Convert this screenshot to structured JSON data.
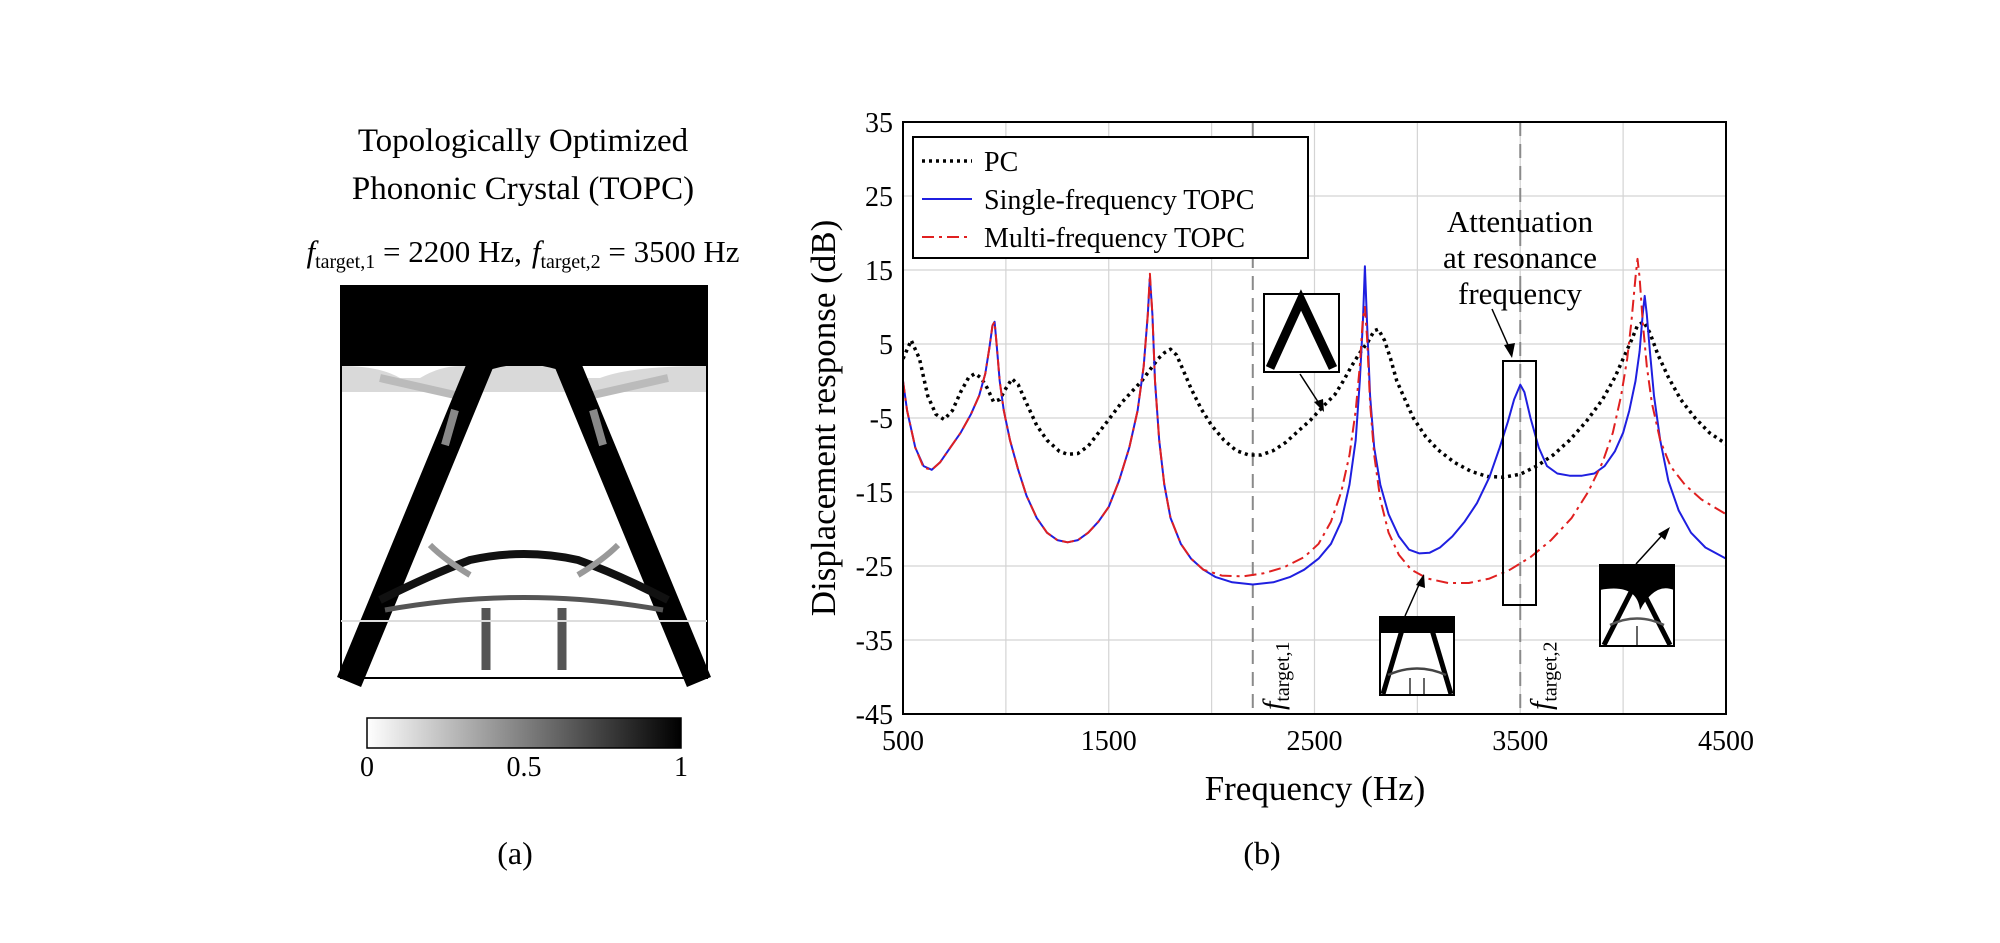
{
  "panel_a": {
    "title_line1": "Topologically Optimized",
    "title_line2": "Phononic Crystal (TOPC)",
    "f1_symbol": "f",
    "f1_sub": "target,1",
    "f1_value": " = 2200 Hz,",
    "f2_symbol": "f",
    "f2_sub": "target,2",
    "f2_value": " = 3500 Hz",
    "colorbar": {
      "ticks": [
        "0",
        "0.5",
        "1"
      ],
      "range": [
        0,
        1
      ],
      "colors": [
        "#ffffff",
        "#000000"
      ]
    },
    "caption": "(a)"
  },
  "panel_b": {
    "caption": "(b)",
    "annotation_lines": [
      "Attenuation",
      "at resonance",
      "frequency"
    ],
    "vline_labels": [
      {
        "symbol": "f",
        "sub": "target,1",
        "x": 2200
      },
      {
        "symbol": "f",
        "sub": "target,2",
        "x": 3500
      }
    ]
  },
  "chart_data": {
    "type": "line",
    "xlabel": "Frequency (Hz)",
    "ylabel": "Displacement response (dB)",
    "xlim": [
      500,
      4500
    ],
    "ylim": [
      -45,
      35
    ],
    "xticks": [
      500,
      1500,
      2500,
      3500,
      4500
    ],
    "yticks": [
      -45,
      -35,
      -25,
      -15,
      -5,
      5,
      15,
      25,
      35
    ],
    "grid": true,
    "legend_position": "top-left",
    "series": [
      {
        "name": "PC",
        "color": "#000000",
        "style": "dotted",
        "points": [
          [
            500,
            3
          ],
          [
            540,
            5.5
          ],
          [
            580,
            3
          ],
          [
            620,
            -2
          ],
          [
            660,
            -4.5
          ],
          [
            700,
            -5.2
          ],
          [
            740,
            -4
          ],
          [
            780,
            -1.5
          ],
          [
            820,
            0.5
          ],
          [
            850,
            1
          ],
          [
            880,
            0.4
          ],
          [
            910,
            -1
          ],
          [
            940,
            -2.8
          ],
          [
            970,
            -2.5
          ],
          [
            1000,
            -1
          ],
          [
            1030,
            0.3
          ],
          [
            1060,
            -0.5
          ],
          [
            1100,
            -3
          ],
          [
            1150,
            -6
          ],
          [
            1200,
            -8
          ],
          [
            1260,
            -9.5
          ],
          [
            1300,
            -9.9
          ],
          [
            1350,
            -9.8
          ],
          [
            1400,
            -8.8
          ],
          [
            1450,
            -7
          ],
          [
            1500,
            -5.2
          ],
          [
            1560,
            -3
          ],
          [
            1620,
            -1.2
          ],
          [
            1660,
            0
          ],
          [
            1700,
            1.5
          ],
          [
            1740,
            3
          ],
          [
            1770,
            3.8
          ],
          [
            1800,
            4.3
          ],
          [
            1830,
            3.5
          ],
          [
            1860,
            1.6
          ],
          [
            1900,
            -1
          ],
          [
            1950,
            -3.8
          ],
          [
            2000,
            -6
          ],
          [
            2060,
            -8
          ],
          [
            2120,
            -9.4
          ],
          [
            2180,
            -10
          ],
          [
            2240,
            -10
          ],
          [
            2300,
            -9.4
          ],
          [
            2360,
            -8.3
          ],
          [
            2420,
            -6.8
          ],
          [
            2480,
            -5.3
          ],
          [
            2540,
            -3.5
          ],
          [
            2600,
            -1.8
          ],
          [
            2640,
            0
          ],
          [
            2680,
            2
          ],
          [
            2720,
            3.8
          ],
          [
            2760,
            5.3
          ],
          [
            2790,
            6.8
          ],
          [
            2810,
            7
          ],
          [
            2840,
            5.5
          ],
          [
            2870,
            3
          ],
          [
            2900,
            0
          ],
          [
            2940,
            -2.5
          ],
          [
            2980,
            -5
          ],
          [
            3040,
            -7.5
          ],
          [
            3100,
            -9.3
          ],
          [
            3180,
            -11
          ],
          [
            3260,
            -12.2
          ],
          [
            3340,
            -12.9
          ],
          [
            3420,
            -13
          ],
          [
            3500,
            -12.6
          ],
          [
            3580,
            -11.5
          ],
          [
            3660,
            -10
          ],
          [
            3740,
            -8
          ],
          [
            3820,
            -5.5
          ],
          [
            3900,
            -2.5
          ],
          [
            3960,
            0.5
          ],
          [
            4000,
            3
          ],
          [
            4040,
            5.5
          ],
          [
            4070,
            7.5
          ],
          [
            4100,
            8
          ],
          [
            4130,
            6.5
          ],
          [
            4170,
            3.5
          ],
          [
            4220,
            0.5
          ],
          [
            4280,
            -2.5
          ],
          [
            4350,
            -5
          ],
          [
            4420,
            -7
          ],
          [
            4500,
            -8.5
          ]
        ]
      },
      {
        "name": "Single-frequency TOPC",
        "color": "#1f1fe0",
        "style": "solid",
        "points": [
          [
            500,
            0
          ],
          [
            520,
            -4
          ],
          [
            560,
            -9
          ],
          [
            600,
            -11.5
          ],
          [
            640,
            -12
          ],
          [
            680,
            -11
          ],
          [
            730,
            -9
          ],
          [
            780,
            -7
          ],
          [
            830,
            -4.5
          ],
          [
            870,
            -2
          ],
          [
            900,
            1
          ],
          [
            920,
            4.5
          ],
          [
            935,
            7.5
          ],
          [
            945,
            8
          ],
          [
            955,
            5
          ],
          [
            970,
            0
          ],
          [
            990,
            -4
          ],
          [
            1020,
            -8
          ],
          [
            1060,
            -12
          ],
          [
            1100,
            -15.5
          ],
          [
            1150,
            -18.5
          ],
          [
            1200,
            -20.5
          ],
          [
            1250,
            -21.5
          ],
          [
            1300,
            -21.8
          ],
          [
            1350,
            -21.5
          ],
          [
            1400,
            -20.5
          ],
          [
            1450,
            -19
          ],
          [
            1500,
            -17
          ],
          [
            1550,
            -13.5
          ],
          [
            1600,
            -9
          ],
          [
            1640,
            -4
          ],
          [
            1670,
            2
          ],
          [
            1690,
            9
          ],
          [
            1700,
            14
          ],
          [
            1712,
            9
          ],
          [
            1725,
            0
          ],
          [
            1745,
            -8
          ],
          [
            1770,
            -14
          ],
          [
            1800,
            -18.5
          ],
          [
            1850,
            -22
          ],
          [
            1900,
            -24
          ],
          [
            1960,
            -25.5
          ],
          [
            2020,
            -26.5
          ],
          [
            2100,
            -27.2
          ],
          [
            2200,
            -27.5
          ],
          [
            2300,
            -27.2
          ],
          [
            2380,
            -26.5
          ],
          [
            2450,
            -25.5
          ],
          [
            2520,
            -24
          ],
          [
            2580,
            -22
          ],
          [
            2630,
            -19
          ],
          [
            2670,
            -14
          ],
          [
            2700,
            -8
          ],
          [
            2720,
            0
          ],
          [
            2735,
            8
          ],
          [
            2745,
            15.5
          ],
          [
            2755,
            8
          ],
          [
            2770,
            -2
          ],
          [
            2790,
            -9
          ],
          [
            2820,
            -14
          ],
          [
            2860,
            -18
          ],
          [
            2910,
            -21
          ],
          [
            2960,
            -22.8
          ],
          [
            3010,
            -23.3
          ],
          [
            3060,
            -23.2
          ],
          [
            3110,
            -22.5
          ],
          [
            3170,
            -21
          ],
          [
            3230,
            -19
          ],
          [
            3290,
            -16.5
          ],
          [
            3350,
            -13
          ],
          [
            3400,
            -9
          ],
          [
            3440,
            -5.5
          ],
          [
            3470,
            -2.5
          ],
          [
            3500,
            -0.5
          ],
          [
            3520,
            -1.5
          ],
          [
            3550,
            -5
          ],
          [
            3590,
            -9
          ],
          [
            3630,
            -11.5
          ],
          [
            3680,
            -12.5
          ],
          [
            3740,
            -12.8
          ],
          [
            3800,
            -12.8
          ],
          [
            3860,
            -12.5
          ],
          [
            3910,
            -11.5
          ],
          [
            3960,
            -9.5
          ],
          [
            4000,
            -7
          ],
          [
            4030,
            -4
          ],
          [
            4060,
            0
          ],
          [
            4080,
            4
          ],
          [
            4095,
            9
          ],
          [
            4105,
            11.5
          ],
          [
            4115,
            9
          ],
          [
            4130,
            4
          ],
          [
            4150,
            -2
          ],
          [
            4180,
            -8
          ],
          [
            4220,
            -13.5
          ],
          [
            4270,
            -17.5
          ],
          [
            4330,
            -20.5
          ],
          [
            4400,
            -22.5
          ],
          [
            4500,
            -24
          ]
        ]
      },
      {
        "name": "Multi-frequency TOPC",
        "color": "#e02020",
        "style": "dashdot",
        "points": [
          [
            500,
            0
          ],
          [
            520,
            -4
          ],
          [
            560,
            -9
          ],
          [
            600,
            -11.7
          ],
          [
            640,
            -12
          ],
          [
            680,
            -11
          ],
          [
            730,
            -9
          ],
          [
            780,
            -7
          ],
          [
            830,
            -4.5
          ],
          [
            870,
            -2
          ],
          [
            900,
            1
          ],
          [
            920,
            4.5
          ],
          [
            935,
            7.5
          ],
          [
            945,
            8
          ],
          [
            955,
            5
          ],
          [
            970,
            0
          ],
          [
            990,
            -4
          ],
          [
            1020,
            -8
          ],
          [
            1060,
            -12
          ],
          [
            1100,
            -15.5
          ],
          [
            1150,
            -18.5
          ],
          [
            1200,
            -20.5
          ],
          [
            1250,
            -21.5
          ],
          [
            1300,
            -21.8
          ],
          [
            1350,
            -21.5
          ],
          [
            1400,
            -20.5
          ],
          [
            1450,
            -19
          ],
          [
            1500,
            -17
          ],
          [
            1550,
            -13.5
          ],
          [
            1600,
            -9
          ],
          [
            1640,
            -4
          ],
          [
            1670,
            2
          ],
          [
            1690,
            9
          ],
          [
            1700,
            14.5
          ],
          [
            1712,
            9
          ],
          [
            1725,
            0
          ],
          [
            1745,
            -8
          ],
          [
            1770,
            -14
          ],
          [
            1800,
            -18.5
          ],
          [
            1850,
            -22
          ],
          [
            1900,
            -24
          ],
          [
            1960,
            -25.5
          ],
          [
            2050,
            -26.3
          ],
          [
            2150,
            -26.4
          ],
          [
            2250,
            -26
          ],
          [
            2350,
            -25.2
          ],
          [
            2450,
            -23.8
          ],
          [
            2520,
            -22
          ],
          [
            2580,
            -19
          ],
          [
            2630,
            -15
          ],
          [
            2670,
            -10
          ],
          [
            2700,
            -4
          ],
          [
            2720,
            2
          ],
          [
            2735,
            8.5
          ],
          [
            2745,
            10
          ],
          [
            2755,
            6
          ],
          [
            2770,
            -3
          ],
          [
            2790,
            -10
          ],
          [
            2820,
            -16
          ],
          [
            2860,
            -20.5
          ],
          [
            2910,
            -23.5
          ],
          [
            2970,
            -25.5
          ],
          [
            3050,
            -26.7
          ],
          [
            3150,
            -27.3
          ],
          [
            3250,
            -27.3
          ],
          [
            3350,
            -26.7
          ],
          [
            3450,
            -25.5
          ],
          [
            3550,
            -23.8
          ],
          [
            3650,
            -21.5
          ],
          [
            3750,
            -18.5
          ],
          [
            3830,
            -15
          ],
          [
            3900,
            -11
          ],
          [
            3950,
            -7
          ],
          [
            3990,
            -2
          ],
          [
            4020,
            3
          ],
          [
            4040,
            8
          ],
          [
            4060,
            14
          ],
          [
            4070,
            16.5
          ],
          [
            4080,
            14
          ],
          [
            4095,
            8
          ],
          [
            4115,
            2
          ],
          [
            4140,
            -3
          ],
          [
            4180,
            -8
          ],
          [
            4230,
            -11.5
          ],
          [
            4300,
            -14
          ],
          [
            4380,
            -16
          ],
          [
            4500,
            -18
          ]
        ]
      }
    ]
  }
}
